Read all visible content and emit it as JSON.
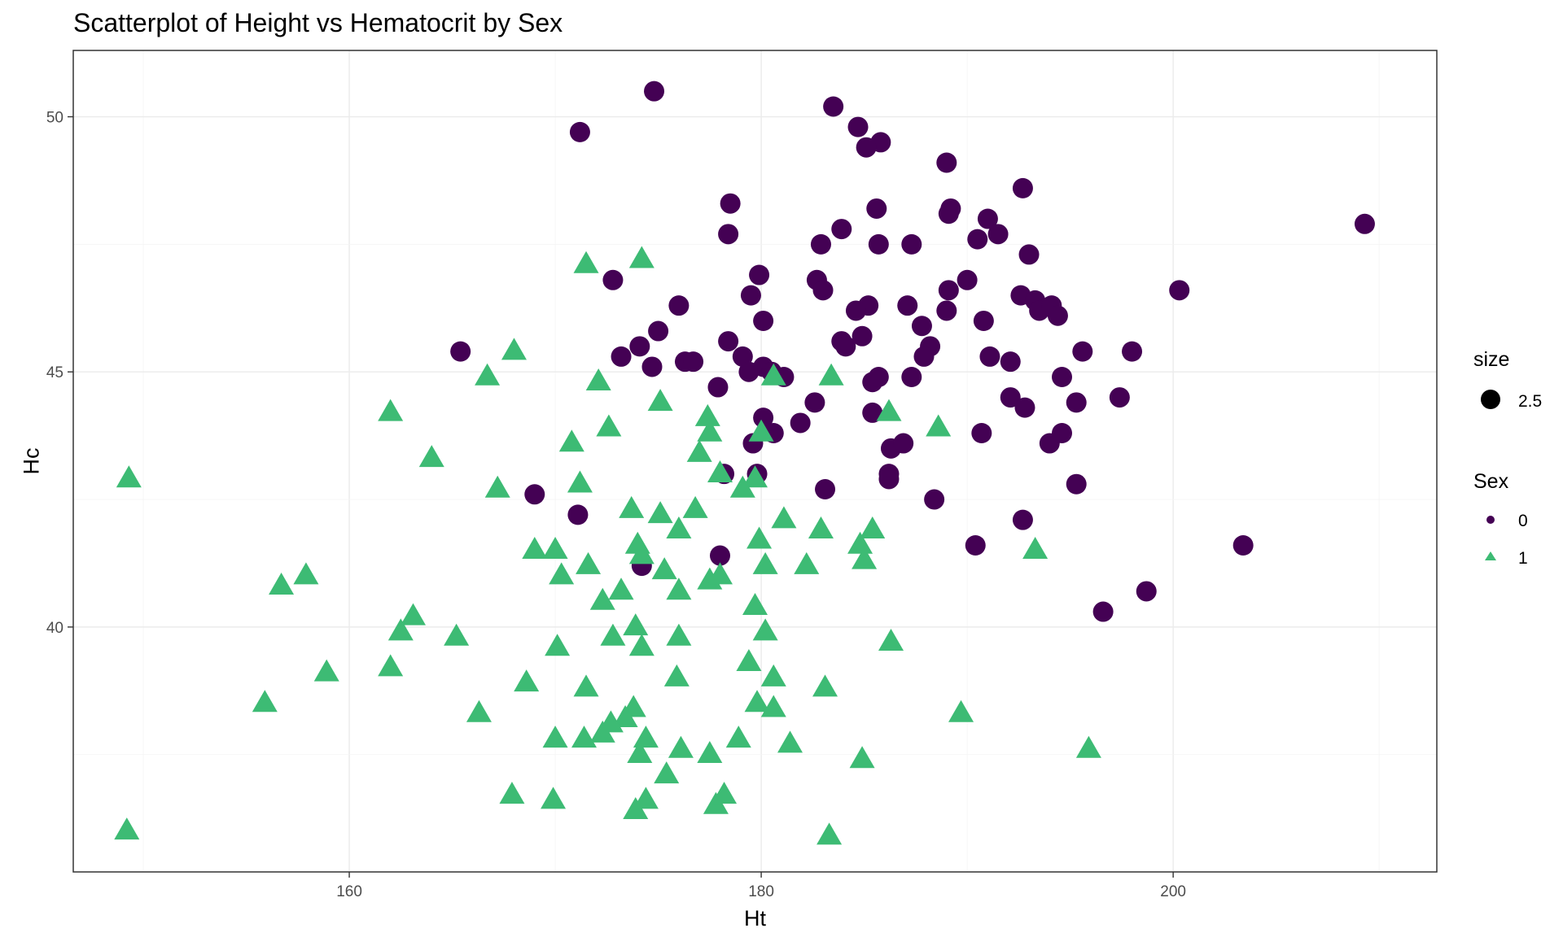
{
  "chart_data": {
    "type": "scatter",
    "title": "Scatterplot of Height vs Hematocrit by Sex",
    "xlabel": "Ht",
    "ylabel": "Hc",
    "xlim": [
      146.6,
      212.8
    ],
    "ylim": [
      35.2,
      51.3
    ],
    "xticks": [
      160,
      180,
      200
    ],
    "yticks": [
      40,
      45,
      50
    ],
    "grid": true,
    "legend_position": "right",
    "legend": {
      "size_title": "size",
      "size_value": "2.5",
      "sex_title": "Sex",
      "sex_levels": [
        "0",
        "1"
      ]
    },
    "colors": {
      "0": "#440154",
      "1": "#3dbb74"
    },
    "series": [
      {
        "name": "0",
        "shape": "circle",
        "points": [
          [
            174.8,
            50.5
          ],
          [
            171.2,
            49.7
          ],
          [
            183.5,
            50.2
          ],
          [
            184.7,
            49.8
          ],
          [
            185.8,
            49.5
          ],
          [
            185.1,
            49.4
          ],
          [
            189.0,
            49.1
          ],
          [
            192.7,
            48.6
          ],
          [
            178.5,
            48.3
          ],
          [
            178.4,
            47.7
          ],
          [
            185.6,
            48.2
          ],
          [
            189.2,
            48.2
          ],
          [
            189.1,
            48.1
          ],
          [
            191.0,
            48.0
          ],
          [
            191.5,
            47.7
          ],
          [
            190.5,
            47.6
          ],
          [
            193.0,
            47.3
          ],
          [
            183.9,
            47.8
          ],
          [
            182.9,
            47.5
          ],
          [
            185.7,
            47.5
          ],
          [
            187.3,
            47.5
          ],
          [
            209.3,
            47.9
          ],
          [
            179.9,
            46.9
          ],
          [
            182.7,
            46.8
          ],
          [
            183.0,
            46.6
          ],
          [
            179.5,
            46.5
          ],
          [
            172.8,
            46.8
          ],
          [
            189.1,
            46.6
          ],
          [
            190.0,
            46.8
          ],
          [
            192.6,
            46.5
          ],
          [
            193.3,
            46.4
          ],
          [
            193.5,
            46.2
          ],
          [
            194.1,
            46.3
          ],
          [
            194.4,
            46.1
          ],
          [
            200.3,
            46.6
          ],
          [
            176.0,
            46.3
          ],
          [
            180.1,
            46.0
          ],
          [
            185.2,
            46.3
          ],
          [
            184.6,
            46.2
          ],
          [
            187.1,
            46.3
          ],
          [
            189.0,
            46.2
          ],
          [
            190.8,
            46.0
          ],
          [
            187.8,
            45.9
          ],
          [
            175.0,
            45.8
          ],
          [
            184.9,
            45.7
          ],
          [
            183.9,
            45.6
          ],
          [
            184.1,
            45.5
          ],
          [
            188.2,
            45.5
          ],
          [
            178.4,
            45.6
          ],
          [
            179.1,
            45.3
          ],
          [
            173.2,
            45.3
          ],
          [
            174.1,
            45.5
          ],
          [
            174.7,
            45.1
          ],
          [
            176.3,
            45.2
          ],
          [
            176.7,
            45.2
          ],
          [
            180.1,
            45.1
          ],
          [
            180.5,
            45.0
          ],
          [
            181.1,
            44.9
          ],
          [
            187.9,
            45.3
          ],
          [
            191.1,
            45.3
          ],
          [
            192.1,
            45.2
          ],
          [
            195.6,
            45.4
          ],
          [
            198.0,
            45.4
          ],
          [
            165.4,
            45.4
          ],
          [
            179.4,
            45.0
          ],
          [
            185.4,
            44.8
          ],
          [
            185.7,
            44.9
          ],
          [
            187.3,
            44.9
          ],
          [
            177.9,
            44.7
          ],
          [
            182.6,
            44.4
          ],
          [
            185.4,
            44.2
          ],
          [
            192.1,
            44.5
          ],
          [
            192.8,
            44.3
          ],
          [
            194.6,
            44.9
          ],
          [
            195.3,
            44.4
          ],
          [
            197.4,
            44.5
          ],
          [
            180.1,
            44.1
          ],
          [
            181.9,
            44.0
          ],
          [
            180.6,
            43.8
          ],
          [
            190.7,
            43.8
          ],
          [
            194.0,
            43.6
          ],
          [
            194.6,
            43.8
          ],
          [
            186.3,
            43.5
          ],
          [
            186.9,
            43.6
          ],
          [
            179.6,
            43.6
          ],
          [
            178.2,
            43.0
          ],
          [
            179.8,
            43.0
          ],
          [
            186.2,
            43.0
          ],
          [
            186.2,
            42.9
          ],
          [
            183.1,
            42.7
          ],
          [
            169.0,
            42.6
          ],
          [
            171.1,
            42.2
          ],
          [
            188.4,
            42.5
          ],
          [
            195.3,
            42.8
          ],
          [
            192.7,
            42.1
          ],
          [
            190.4,
            41.6
          ],
          [
            178.0,
            41.4
          ],
          [
            174.2,
            41.2
          ],
          [
            203.4,
            41.6
          ],
          [
            198.7,
            40.7
          ],
          [
            196.6,
            40.3
          ]
        ]
      },
      {
        "name": "1",
        "shape": "triangle",
        "points": [
          [
            174.2,
            47.2
          ],
          [
            171.5,
            47.1
          ],
          [
            168.0,
            45.4
          ],
          [
            166.7,
            44.9
          ],
          [
            172.1,
            44.8
          ],
          [
            183.4,
            44.9
          ],
          [
            180.6,
            44.9
          ],
          [
            175.1,
            44.4
          ],
          [
            162.0,
            44.2
          ],
          [
            177.4,
            44.1
          ],
          [
            186.2,
            44.2
          ],
          [
            177.5,
            43.8
          ],
          [
            172.6,
            43.9
          ],
          [
            170.8,
            43.6
          ],
          [
            180.0,
            43.8
          ],
          [
            164.0,
            43.3
          ],
          [
            177.0,
            43.4
          ],
          [
            178.0,
            43.0
          ],
          [
            188.6,
            43.9
          ],
          [
            179.7,
            42.9
          ],
          [
            149.3,
            42.9
          ],
          [
            167.2,
            42.7
          ],
          [
            171.2,
            42.8
          ],
          [
            179.1,
            42.7
          ],
          [
            173.7,
            42.3
          ],
          [
            175.1,
            42.2
          ],
          [
            176.8,
            42.3
          ],
          [
            181.1,
            42.1
          ],
          [
            176.0,
            41.9
          ],
          [
            182.9,
            41.9
          ],
          [
            185.4,
            41.9
          ],
          [
            193.3,
            41.5
          ],
          [
            169.0,
            41.5
          ],
          [
            170.0,
            41.5
          ],
          [
            174.0,
            41.6
          ],
          [
            184.8,
            41.6
          ],
          [
            185.0,
            41.3
          ],
          [
            179.9,
            41.7
          ],
          [
            180.2,
            41.2
          ],
          [
            182.2,
            41.2
          ],
          [
            174.2,
            41.4
          ],
          [
            175.3,
            41.1
          ],
          [
            171.6,
            41.2
          ],
          [
            170.3,
            41.0
          ],
          [
            157.9,
            41.0
          ],
          [
            156.7,
            40.8
          ],
          [
            177.5,
            40.9
          ],
          [
            178.0,
            41.0
          ],
          [
            176.0,
            40.7
          ],
          [
            173.2,
            40.7
          ],
          [
            172.3,
            40.5
          ],
          [
            179.7,
            40.4
          ],
          [
            163.1,
            40.2
          ],
          [
            162.5,
            39.9
          ],
          [
            165.2,
            39.8
          ],
          [
            173.9,
            40.0
          ],
          [
            172.8,
            39.8
          ],
          [
            176.0,
            39.8
          ],
          [
            180.2,
            39.9
          ],
          [
            186.3,
            39.7
          ],
          [
            170.1,
            39.6
          ],
          [
            174.2,
            39.6
          ],
          [
            158.9,
            39.1
          ],
          [
            162.0,
            39.2
          ],
          [
            179.4,
            39.3
          ],
          [
            180.6,
            39.0
          ],
          [
            175.9,
            39.0
          ],
          [
            168.6,
            38.9
          ],
          [
            171.5,
            38.8
          ],
          [
            183.1,
            38.8
          ],
          [
            155.9,
            38.5
          ],
          [
            166.3,
            38.3
          ],
          [
            173.8,
            38.4
          ],
          [
            173.4,
            38.2
          ],
          [
            172.7,
            38.1
          ],
          [
            179.8,
            38.5
          ],
          [
            180.6,
            38.4
          ],
          [
            189.7,
            38.3
          ],
          [
            170.0,
            37.8
          ],
          [
            171.4,
            37.8
          ],
          [
            172.3,
            37.9
          ],
          [
            174.4,
            37.8
          ],
          [
            178.9,
            37.8
          ],
          [
            181.4,
            37.7
          ],
          [
            174.1,
            37.5
          ],
          [
            176.1,
            37.6
          ],
          [
            177.5,
            37.5
          ],
          [
            184.9,
            37.4
          ],
          [
            195.9,
            37.6
          ],
          [
            175.4,
            37.1
          ],
          [
            167.9,
            36.7
          ],
          [
            169.9,
            36.6
          ],
          [
            174.4,
            36.6
          ],
          [
            173.9,
            36.4
          ],
          [
            177.8,
            36.5
          ],
          [
            178.2,
            36.7
          ],
          [
            149.2,
            36.0
          ],
          [
            183.3,
            35.9
          ]
        ]
      }
    ]
  }
}
